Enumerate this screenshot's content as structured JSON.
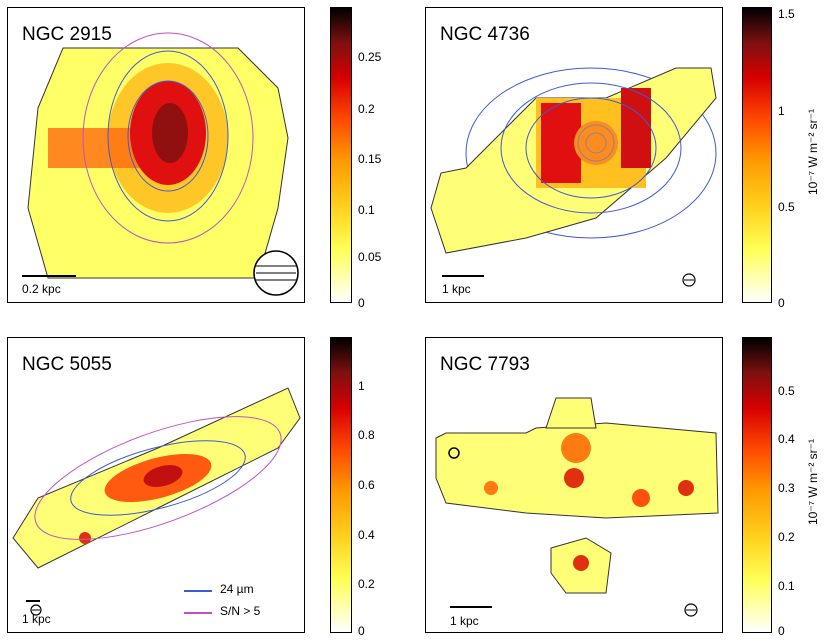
{
  "unit_label": "10⁻⁷ W m⁻² sr⁻¹",
  "panels": [
    {
      "name": "NGC 2915",
      "scalebar": "0.2 kpc",
      "ticks": [
        "0",
        "0.05",
        "0.1",
        "0.15",
        "0.2",
        "0.25"
      ]
    },
    {
      "name": "NGC 4736",
      "scalebar": "1 kpc",
      "ticks": [
        "0",
        "0.5",
        "1",
        "1.5"
      ]
    },
    {
      "name": "NGC 5055",
      "scalebar": "1 kpc",
      "ticks": [
        "0",
        "0.2",
        "0.4",
        "0.6",
        "0.8",
        "1"
      ]
    },
    {
      "name": "NGC 7793",
      "scalebar": "1 kpc",
      "ticks": [
        "0",
        "0.1",
        "0.2",
        "0.3",
        "0.4",
        "0.5"
      ]
    }
  ],
  "legend": {
    "blue_label": "24 µm",
    "magenta_label": "S/N > 5",
    "blue_color": "#3a5bd9",
    "magenta_color": "#c050c8"
  }
}
